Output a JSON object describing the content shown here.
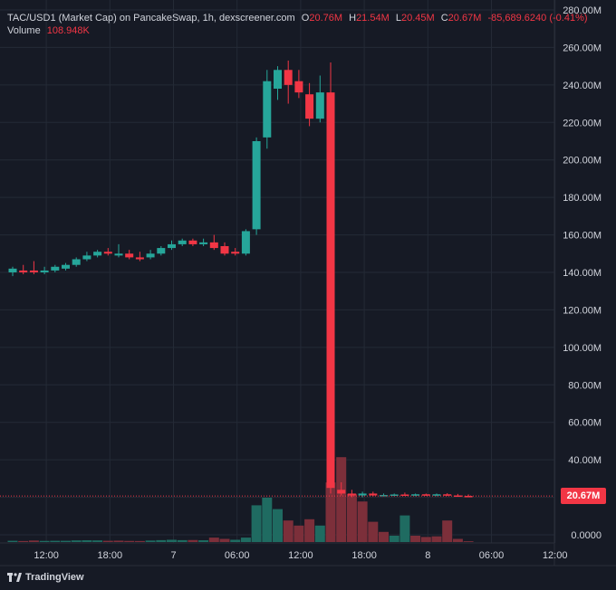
{
  "legend": {
    "symbol": "TAC/USD1 (Market Cap) on PancakeSwap, 1h, dexscreener.com",
    "o_label": "O",
    "o_value": "20.76M",
    "h_label": "H",
    "h_value": "21.54M",
    "l_label": "L",
    "l_value": "20.45M",
    "c_label": "C",
    "c_value": "20.67M",
    "change": "-85,689.6240 (-0.41%)",
    "volume_label": "Volume",
    "volume_value": "108.948K"
  },
  "price_tag": "20.67M",
  "brand": "TradingView",
  "colors": {
    "up": "#26a69a",
    "down": "#f23645",
    "up_vol": "#1f6b61",
    "down_vol": "#7c2f3a",
    "background": "#161a25",
    "grid": "#242a36"
  },
  "chart_data": {
    "type": "candlestick",
    "y_unit": "M",
    "ylim": [
      0,
      280
    ],
    "y_ticks": [
      "280.00M",
      "260.00M",
      "240.00M",
      "220.00M",
      "200.00M",
      "180.00M",
      "160.00M",
      "140.00M",
      "120.00M",
      "100.00M",
      "80.00M",
      "60.00M",
      "40.00M",
      "20.00M",
      "0.0000"
    ],
    "y_tick_values": [
      280,
      260,
      240,
      220,
      200,
      180,
      160,
      140,
      120,
      100,
      80,
      60,
      40,
      20,
      0
    ],
    "x_ticks": [
      {
        "label": "12:00",
        "hour": 3
      },
      {
        "label": "18:00",
        "hour": 9
      },
      {
        "label": "7",
        "hour": 15
      },
      {
        "label": "06:00",
        "hour": 21
      },
      {
        "label": "12:00",
        "hour": 27
      },
      {
        "label": "18:00",
        "hour": 33
      },
      {
        "label": "8",
        "hour": 39
      },
      {
        "label": "06:00",
        "hour": 45
      },
      {
        "label": "12:00",
        "hour": 51
      }
    ],
    "last_close": 20.67,
    "candles": [
      {
        "t": 0,
        "o": 140,
        "h": 143,
        "l": 138,
        "c": 142
      },
      {
        "t": 1,
        "o": 141,
        "h": 144,
        "l": 139,
        "c": 140
      },
      {
        "t": 2,
        "o": 141,
        "h": 146,
        "l": 139,
        "c": 140
      },
      {
        "t": 3,
        "o": 140,
        "h": 143,
        "l": 139,
        "c": 141
      },
      {
        "t": 4,
        "o": 141,
        "h": 144,
        "l": 140,
        "c": 143
      },
      {
        "t": 5,
        "o": 142,
        "h": 145,
        "l": 141,
        "c": 144
      },
      {
        "t": 6,
        "o": 144,
        "h": 148,
        "l": 143,
        "c": 147
      },
      {
        "t": 7,
        "o": 147,
        "h": 151,
        "l": 146,
        "c": 149
      },
      {
        "t": 8,
        "o": 149,
        "h": 152,
        "l": 148,
        "c": 151
      },
      {
        "t": 9,
        "o": 151,
        "h": 153,
        "l": 149,
        "c": 150
      },
      {
        "t": 10,
        "o": 149,
        "h": 155,
        "l": 148,
        "c": 150
      },
      {
        "t": 11,
        "o": 150,
        "h": 152,
        "l": 147,
        "c": 148
      },
      {
        "t": 12,
        "o": 148,
        "h": 151,
        "l": 146,
        "c": 147
      },
      {
        "t": 13,
        "o": 148,
        "h": 152,
        "l": 147,
        "c": 150
      },
      {
        "t": 14,
        "o": 150,
        "h": 154,
        "l": 149,
        "c": 153
      },
      {
        "t": 15,
        "o": 153,
        "h": 157,
        "l": 152,
        "c": 155
      },
      {
        "t": 16,
        "o": 155,
        "h": 158,
        "l": 154,
        "c": 157
      },
      {
        "t": 17,
        "o": 157,
        "h": 158,
        "l": 154,
        "c": 155
      },
      {
        "t": 18,
        "o": 155,
        "h": 158,
        "l": 154,
        "c": 156
      },
      {
        "t": 19,
        "o": 156,
        "h": 160,
        "l": 152,
        "c": 153
      },
      {
        "t": 20,
        "o": 154,
        "h": 156,
        "l": 149,
        "c": 150
      },
      {
        "t": 21,
        "o": 151,
        "h": 153,
        "l": 149,
        "c": 150
      },
      {
        "t": 22,
        "o": 150,
        "h": 163,
        "l": 149,
        "c": 162
      },
      {
        "t": 23,
        "o": 163,
        "h": 212,
        "l": 160,
        "c": 210
      },
      {
        "t": 24,
        "o": 212,
        "h": 248,
        "l": 206,
        "c": 242
      },
      {
        "t": 25,
        "o": 238,
        "h": 250,
        "l": 232,
        "c": 248
      },
      {
        "t": 26,
        "o": 248,
        "h": 253,
        "l": 230,
        "c": 240
      },
      {
        "t": 27,
        "o": 242,
        "h": 248,
        "l": 233,
        "c": 236
      },
      {
        "t": 28,
        "o": 235,
        "h": 241,
        "l": 218,
        "c": 222
      },
      {
        "t": 29,
        "o": 222,
        "h": 245,
        "l": 220,
        "c": 236
      },
      {
        "t": 30,
        "o": 236,
        "h": 252,
        "l": 22,
        "c": 25
      },
      {
        "t": 31,
        "o": 24,
        "h": 28,
        "l": 21,
        "c": 22
      },
      {
        "t": 32,
        "o": 22,
        "h": 24,
        "l": 20,
        "c": 21
      },
      {
        "t": 33,
        "o": 21,
        "h": 23,
        "l": 20,
        "c": 22
      },
      {
        "t": 34,
        "o": 22,
        "h": 23,
        "l": 20.5,
        "c": 21
      },
      {
        "t": 35,
        "o": 21,
        "h": 22,
        "l": 20.5,
        "c": 21.2
      },
      {
        "t": 36,
        "o": 21,
        "h": 22,
        "l": 20.5,
        "c": 21.5
      },
      {
        "t": 37,
        "o": 21.5,
        "h": 22.5,
        "l": 20.8,
        "c": 21.2
      },
      {
        "t": 38,
        "o": 21.2,
        "h": 22,
        "l": 20.6,
        "c": 21.6
      },
      {
        "t": 39,
        "o": 21.6,
        "h": 22,
        "l": 20.8,
        "c": 21.1
      },
      {
        "t": 40,
        "o": 21.2,
        "h": 22,
        "l": 20.6,
        "c": 21.6
      },
      {
        "t": 41,
        "o": 21.6,
        "h": 22.2,
        "l": 20.7,
        "c": 21
      },
      {
        "t": 42,
        "o": 21,
        "h": 21.8,
        "l": 20.5,
        "c": 20.8
      },
      {
        "t": 43,
        "o": 20.76,
        "h": 21.54,
        "l": 20.45,
        "c": 20.67
      }
    ],
    "volumes": [
      {
        "t": 0,
        "v": 1,
        "up": true
      },
      {
        "t": 1,
        "v": 0.8,
        "up": false
      },
      {
        "t": 2,
        "v": 1.2,
        "up": false
      },
      {
        "t": 3,
        "v": 0.9,
        "up": true
      },
      {
        "t": 4,
        "v": 1,
        "up": true
      },
      {
        "t": 5,
        "v": 1,
        "up": true
      },
      {
        "t": 6,
        "v": 1.3,
        "up": true
      },
      {
        "t": 7,
        "v": 1.4,
        "up": true
      },
      {
        "t": 8,
        "v": 1.3,
        "up": true
      },
      {
        "t": 9,
        "v": 1,
        "up": false
      },
      {
        "t": 10,
        "v": 1.1,
        "up": false
      },
      {
        "t": 11,
        "v": 0.9,
        "up": false
      },
      {
        "t": 12,
        "v": 0.8,
        "up": false
      },
      {
        "t": 13,
        "v": 1.2,
        "up": true
      },
      {
        "t": 14,
        "v": 1.5,
        "up": true
      },
      {
        "t": 15,
        "v": 1.8,
        "up": true
      },
      {
        "t": 16,
        "v": 1.5,
        "up": true
      },
      {
        "t": 17,
        "v": 1.6,
        "up": false
      },
      {
        "t": 18,
        "v": 1.4,
        "up": true
      },
      {
        "t": 19,
        "v": 3.5,
        "up": false
      },
      {
        "t": 20,
        "v": 2.5,
        "up": false
      },
      {
        "t": 21,
        "v": 1.8,
        "up": true
      },
      {
        "t": 22,
        "v": 3.5,
        "up": true
      },
      {
        "t": 23,
        "v": 29,
        "up": true
      },
      {
        "t": 24,
        "v": 35,
        "up": true
      },
      {
        "t": 25,
        "v": 26,
        "up": true
      },
      {
        "t": 26,
        "v": 17,
        "up": false
      },
      {
        "t": 27,
        "v": 13,
        "up": false
      },
      {
        "t": 28,
        "v": 18,
        "up": false
      },
      {
        "t": 29,
        "v": 13,
        "up": true
      },
      {
        "t": 30,
        "v": 47,
        "up": false
      },
      {
        "t": 31,
        "v": 67,
        "up": false
      },
      {
        "t": 32,
        "v": 38,
        "up": false
      },
      {
        "t": 33,
        "v": 32,
        "up": false
      },
      {
        "t": 34,
        "v": 16,
        "up": false
      },
      {
        "t": 35,
        "v": 8,
        "up": false
      },
      {
        "t": 36,
        "v": 5,
        "up": true
      },
      {
        "t": 37,
        "v": 21,
        "up": true
      },
      {
        "t": 38,
        "v": 5,
        "up": false
      },
      {
        "t": 39,
        "v": 4,
        "up": false
      },
      {
        "t": 40,
        "v": 4.5,
        "up": false
      },
      {
        "t": 41,
        "v": 17,
        "up": false
      },
      {
        "t": 42,
        "v": 2.5,
        "up": false
      },
      {
        "t": 43,
        "v": 0.6,
        "up": false
      }
    ]
  }
}
